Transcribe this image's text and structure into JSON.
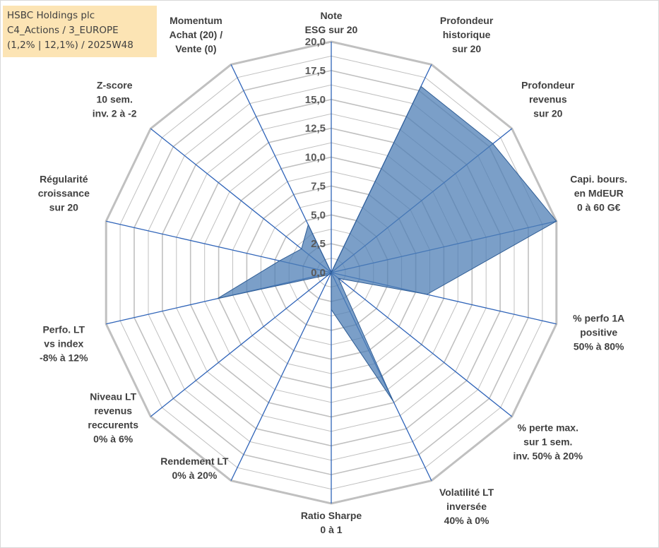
{
  "info": {
    "line1": "HSBC Holdings plc",
    "line2": "C4_Actions / 3_EUROPE",
    "line3": "(1,2% | 12,1%) / 2025W48"
  },
  "chart_data": {
    "type": "radar",
    "title": "",
    "rmin": 0,
    "rmax": 20,
    "ticks": [
      "0,0",
      "2,5",
      "5,0",
      "7,5",
      "10,0",
      "12,5",
      "15,0",
      "17,5",
      "20,0"
    ],
    "tick_values": [
      0,
      2.5,
      5,
      7.5,
      10,
      12.5,
      15,
      17.5,
      20
    ],
    "categories": [
      [
        "Note",
        "ESG sur 20"
      ],
      [
        "Profondeur",
        "historique",
        "sur 20"
      ],
      [
        "Profondeur",
        "revenus",
        "sur 20"
      ],
      [
        "Capi. bours.",
        "en MdEUR",
        "0 à 60 G€"
      ],
      [
        "% perfo 1A",
        "positive",
        "50% à 80%"
      ],
      [
        "% perte max.",
        "sur 1 sem.",
        "inv. 50% à 20%"
      ],
      [
        "Volatilité LT",
        "inversée",
        "40% à 0%"
      ],
      [
        "Ratio Sharpe",
        "0 à 1"
      ],
      [
        "Rendement LT",
        "0% à 20%"
      ],
      [
        "Niveau LT",
        "revenus",
        "reccurents",
        "0% à 6%"
      ],
      [
        "Perfo. LT",
        "vs index",
        "-8% à 12%"
      ],
      [
        "Régularité",
        "croissance",
        "sur 20"
      ],
      [
        "Z-score",
        "10 sem.",
        "inv. 2 à -2"
      ],
      [
        "Momentum",
        "Achat (20) /",
        "Vente (0)"
      ]
    ],
    "series": [
      {
        "values": [
          0,
          17.9,
          17.9,
          20,
          8.5,
          0.8,
          12.4,
          3.2,
          0,
          0.3,
          10.1,
          4.6,
          3.3,
          4.6
        ],
        "color": "#4f7fb5"
      }
    ],
    "grid": true,
    "grid_color": "#c0c0c0",
    "spoke_color": "#2e63b8"
  }
}
